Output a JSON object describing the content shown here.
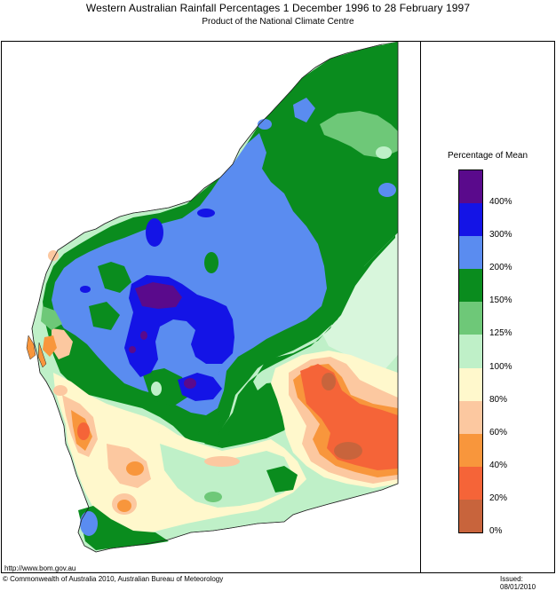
{
  "header": {
    "title": "Western Australian Rainfall Percentages 1 December 1996 to 28 February 1997",
    "subtitle": "Product of the National Climate Centre"
  },
  "legend": {
    "title": "Percentage of Mean",
    "bands": [
      {
        "color": "#5a0a8c"
      },
      {
        "color": "#1414e6"
      },
      {
        "color": "#5a8cf0"
      },
      {
        "color": "#0a8c1e"
      },
      {
        "color": "#6ec878"
      },
      {
        "color": "#bff0c8"
      },
      {
        "color": "#fff8cc"
      },
      {
        "color": "#fcc8a0"
      },
      {
        "color": "#f8963c"
      },
      {
        "color": "#f56438"
      },
      {
        "color": "#c8643c"
      }
    ],
    "labels": [
      "400%",
      "300%",
      "200%",
      "150%",
      "125%",
      "100%",
      "80%",
      "60%",
      "40%",
      "20%",
      "0%"
    ]
  },
  "footer": {
    "url": "http://www.bom.gov.au",
    "copyright": "© Commonwealth of Australia 2010, Australian Bureau of Meteorology",
    "issued": "Issued: 08/01/2010"
  }
}
